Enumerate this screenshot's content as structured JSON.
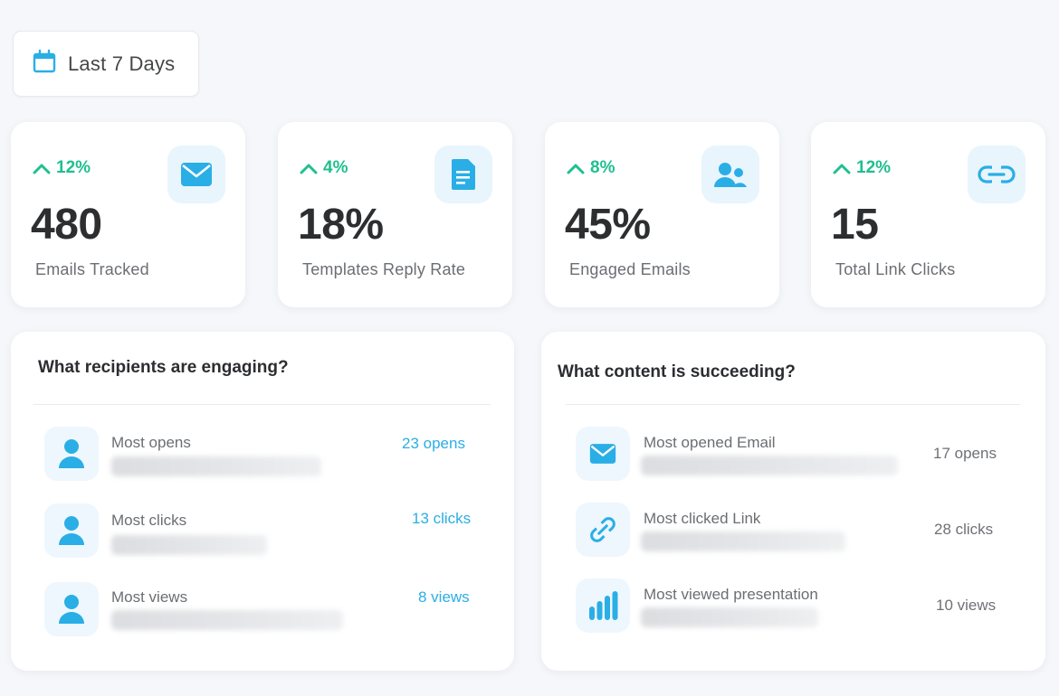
{
  "date_filter": {
    "label": "Last 7 Days",
    "icon": "calendar-icon"
  },
  "stats": [
    {
      "trend": "12%",
      "value": "480",
      "caption": "Emails Tracked",
      "icon": "envelope-icon"
    },
    {
      "trend": "4%",
      "value": "18%",
      "caption": "Templates Reply Rate",
      "icon": "document-icon"
    },
    {
      "trend": "8%",
      "value": "45%",
      "caption": "Engaged Emails",
      "icon": "users-icon"
    },
    {
      "trend": "12%",
      "value": "15",
      "caption": "Total Link Clicks",
      "icon": "link-icon"
    }
  ],
  "recipients": {
    "title": "What recipients are engaging?",
    "rows": [
      {
        "label": "Most opens",
        "value": "23 opens",
        "icon": "user-icon"
      },
      {
        "label": "Most clicks",
        "value": "13 clicks",
        "icon": "user-icon"
      },
      {
        "label": "Most views",
        "value": "8 views",
        "icon": "user-icon"
      }
    ]
  },
  "content": {
    "title": "What content is succeeding?",
    "rows": [
      {
        "label": "Most opened Email",
        "value": "17  opens",
        "icon": "envelope-icon"
      },
      {
        "label": "Most clicked Link",
        "value": "28  clicks",
        "icon": "link-icon"
      },
      {
        "label": "Most viewed presentation",
        "value": "10  views",
        "icon": "bar-chart-icon"
      }
    ]
  },
  "colors": {
    "accent": "#2aaee6",
    "trend_up": "#1fbf8f",
    "icon_bg": "#e9f5fc"
  }
}
